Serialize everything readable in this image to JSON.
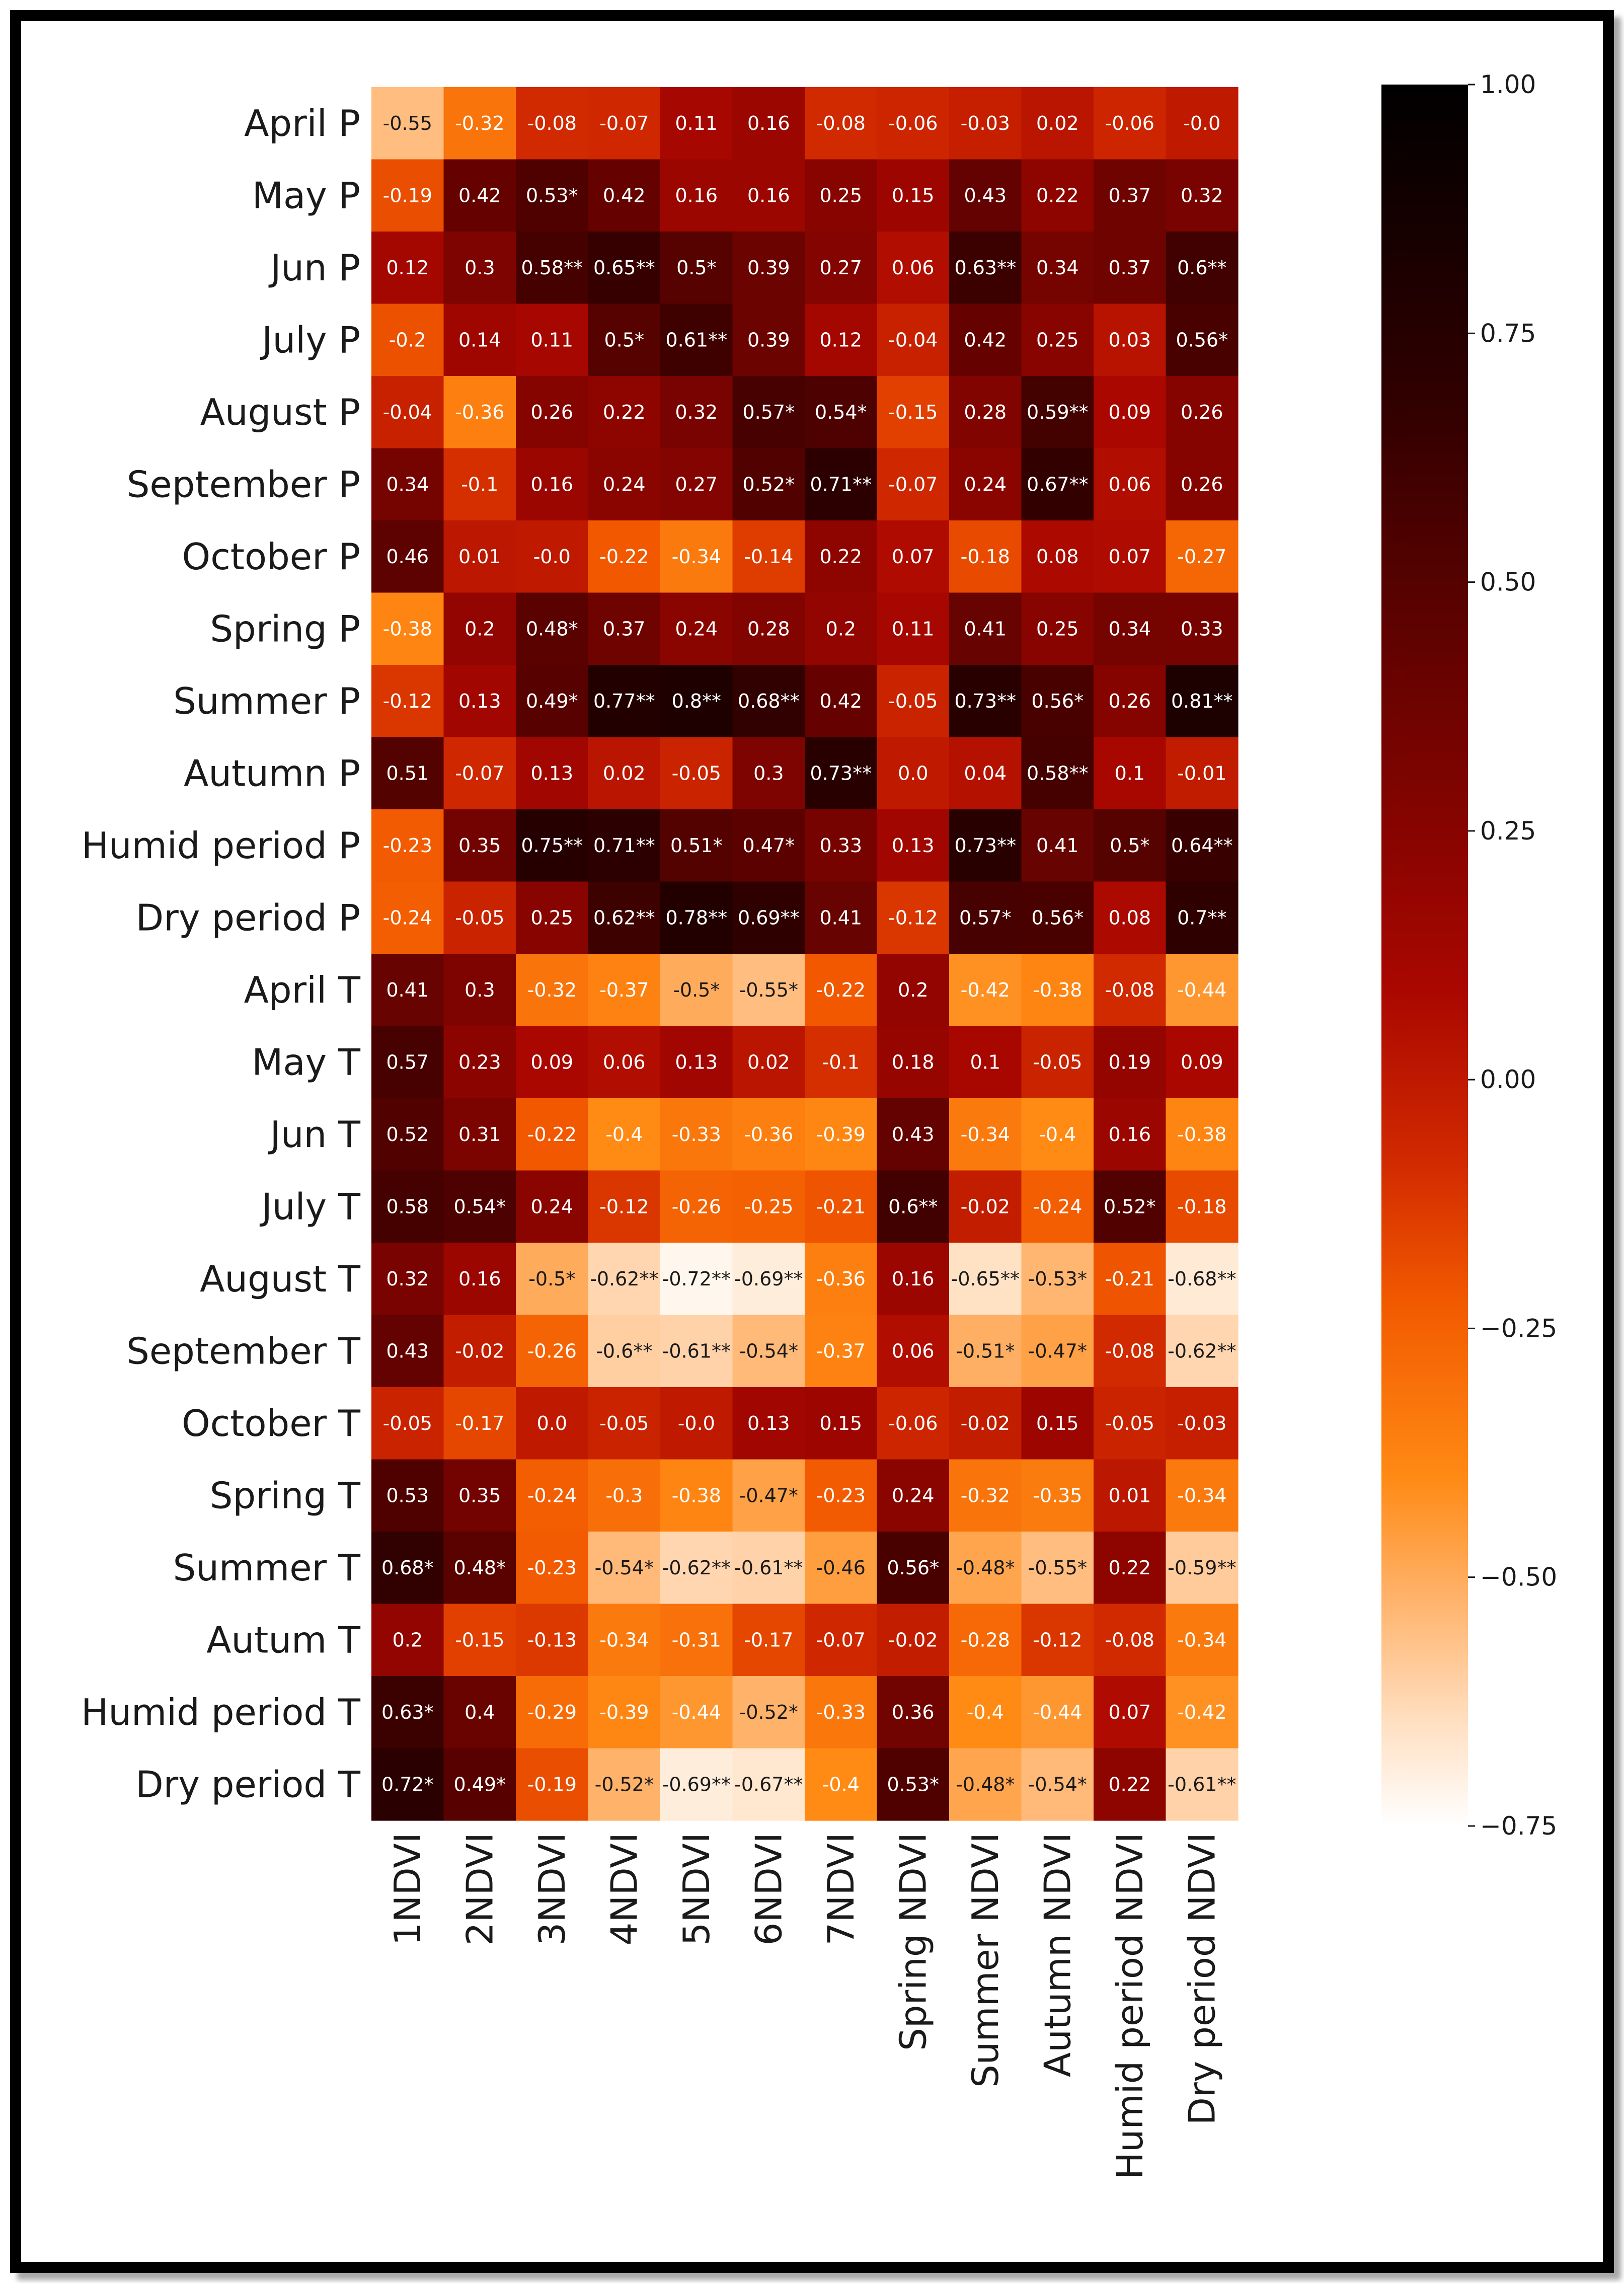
{
  "chart_data": {
    "type": "heatmap",
    "title": "",
    "xlabel": "",
    "ylabel": "",
    "colormap": "gist_heat_r",
    "vmin": -0.75,
    "vmax": 1.0,
    "colorbar": {
      "ticks": [
        1.0,
        0.75,
        0.5,
        0.25,
        0.0,
        -0.25,
        -0.5,
        -0.75
      ],
      "tick_labels": [
        "1.00",
        "0.75",
        "0.50",
        "0.25",
        "0.00",
        "−0.25",
        "−0.50",
        "−0.75"
      ]
    },
    "x_labels": [
      "1NDVI",
      "2NDVI",
      "3NDVI",
      "4NDVI",
      "5NDVI",
      "6NDVI",
      "7NDVI",
      "Spring NDVI",
      "Summer NDVI",
      "Autumn NDVI",
      "Humid  period NDVI",
      "Dry period NDVI"
    ],
    "y_labels": [
      "April P",
      "May P",
      "Jun P",
      "July P",
      "August P",
      "September P",
      "October P",
      "Spring P",
      "Summer P",
      "Autumn P",
      "Humid  period P",
      "Dry period P",
      "April T",
      "May T",
      "Jun T",
      "July T",
      "August T",
      "September T",
      "October T",
      "Spring T",
      "Summer T",
      "Autum T",
      "Humid  period T",
      "Dry period T"
    ],
    "values": [
      [
        -0.55,
        -0.32,
        -0.08,
        -0.07,
        0.11,
        0.16,
        -0.08,
        -0.06,
        -0.03,
        0.02,
        -0.06,
        -0.0
      ],
      [
        -0.19,
        0.42,
        0.53,
        0.42,
        0.16,
        0.16,
        0.25,
        0.15,
        0.43,
        0.22,
        0.37,
        0.32
      ],
      [
        0.12,
        0.3,
        0.58,
        0.65,
        0.5,
        0.39,
        0.27,
        0.06,
        0.63,
        0.34,
        0.37,
        0.6
      ],
      [
        -0.2,
        0.14,
        0.11,
        0.5,
        0.61,
        0.39,
        0.12,
        -0.04,
        0.42,
        0.25,
        0.03,
        0.56
      ],
      [
        -0.04,
        -0.36,
        0.26,
        0.22,
        0.32,
        0.57,
        0.54,
        -0.15,
        0.28,
        0.59,
        0.09,
        0.26
      ],
      [
        0.34,
        -0.1,
        0.16,
        0.24,
        0.27,
        0.52,
        0.71,
        -0.07,
        0.24,
        0.67,
        0.06,
        0.26
      ],
      [
        0.46,
        0.01,
        -0.0,
        -0.22,
        -0.34,
        -0.14,
        0.22,
        0.07,
        -0.18,
        0.08,
        0.07,
        -0.27
      ],
      [
        -0.38,
        0.2,
        0.48,
        0.37,
        0.24,
        0.28,
        0.2,
        0.11,
        0.41,
        0.25,
        0.34,
        0.33
      ],
      [
        -0.12,
        0.13,
        0.49,
        0.77,
        0.8,
        0.68,
        0.42,
        -0.05,
        0.73,
        0.56,
        0.26,
        0.81
      ],
      [
        0.51,
        -0.07,
        0.13,
        0.02,
        -0.05,
        0.3,
        0.73,
        0.0,
        0.04,
        0.58,
        0.1,
        -0.01
      ],
      [
        -0.23,
        0.35,
        0.75,
        0.71,
        0.51,
        0.47,
        0.33,
        0.13,
        0.73,
        0.41,
        0.5,
        0.64
      ],
      [
        -0.24,
        -0.05,
        0.25,
        0.62,
        0.78,
        0.69,
        0.41,
        -0.12,
        0.57,
        0.56,
        0.08,
        0.7
      ],
      [
        0.41,
        0.3,
        -0.32,
        -0.37,
        -0.5,
        -0.55,
        -0.22,
        0.2,
        -0.42,
        -0.38,
        -0.08,
        -0.44
      ],
      [
        0.57,
        0.23,
        0.09,
        0.06,
        0.13,
        0.02,
        -0.1,
        0.18,
        0.1,
        -0.05,
        0.19,
        0.09
      ],
      [
        0.52,
        0.31,
        -0.22,
        -0.4,
        -0.33,
        -0.36,
        -0.39,
        0.43,
        -0.34,
        -0.4,
        0.16,
        -0.38
      ],
      [
        0.58,
        0.54,
        0.24,
        -0.12,
        -0.26,
        -0.25,
        -0.21,
        0.6,
        -0.02,
        -0.24,
        0.52,
        -0.18
      ],
      [
        0.32,
        0.16,
        -0.5,
        -0.62,
        -0.72,
        -0.69,
        -0.36,
        0.16,
        -0.65,
        -0.53,
        -0.21,
        -0.68
      ],
      [
        0.43,
        -0.02,
        -0.26,
        -0.6,
        -0.61,
        -0.54,
        -0.37,
        0.06,
        -0.51,
        -0.47,
        -0.08,
        -0.62
      ],
      [
        -0.05,
        -0.17,
        0.0,
        -0.05,
        -0.0,
        0.13,
        0.15,
        -0.06,
        -0.02,
        0.15,
        -0.05,
        -0.03
      ],
      [
        0.53,
        0.35,
        -0.24,
        -0.3,
        -0.38,
        -0.47,
        -0.23,
        0.24,
        -0.32,
        -0.35,
        0.01,
        -0.34
      ],
      [
        0.68,
        0.48,
        -0.23,
        -0.54,
        -0.62,
        -0.61,
        -0.46,
        0.56,
        -0.48,
        -0.55,
        0.22,
        -0.59
      ],
      [
        0.2,
        -0.15,
        -0.13,
        -0.34,
        -0.31,
        -0.17,
        -0.07,
        -0.02,
        -0.28,
        -0.12,
        -0.08,
        -0.34
      ],
      [
        0.63,
        0.4,
        -0.29,
        -0.39,
        -0.44,
        -0.52,
        -0.33,
        0.36,
        -0.4,
        -0.44,
        0.07,
        -0.42
      ],
      [
        0.72,
        0.49,
        -0.19,
        -0.52,
        -0.69,
        -0.67,
        -0.4,
        0.53,
        -0.48,
        -0.54,
        0.22,
        -0.61
      ]
    ],
    "cell_labels": [
      [
        "-0.55",
        "-0.32",
        "-0.08",
        "-0.07",
        "0.11",
        "0.16",
        "-0.08",
        "-0.06",
        "-0.03",
        "0.02",
        "-0.06",
        "-0.0"
      ],
      [
        "-0.19",
        "0.42",
        "0.53*",
        "0.42",
        "0.16",
        "0.16",
        "0.25",
        "0.15",
        "0.43",
        "0.22",
        "0.37",
        "0.32"
      ],
      [
        "0.12",
        "0.3",
        "0.58**",
        "0.65**",
        "0.5*",
        "0.39",
        "0.27",
        "0.06",
        "0.63**",
        "0.34",
        "0.37",
        "0.6**"
      ],
      [
        "-0.2",
        "0.14",
        "0.11",
        "0.5*",
        "0.61**",
        "0.39",
        "0.12",
        "-0.04",
        "0.42",
        "0.25",
        "0.03",
        "0.56*"
      ],
      [
        "-0.04",
        "-0.36",
        "0.26",
        "0.22",
        "0.32",
        "0.57*",
        "0.54*",
        "-0.15",
        "0.28",
        "0.59**",
        "0.09",
        "0.26"
      ],
      [
        "0.34",
        "-0.1",
        "0.16",
        "0.24",
        "0.27",
        "0.52*",
        "0.71**",
        "-0.07",
        "0.24",
        "0.67**",
        "0.06",
        "0.26"
      ],
      [
        "0.46",
        "0.01",
        "-0.0",
        "-0.22",
        "-0.34",
        "-0.14",
        "0.22",
        "0.07",
        "-0.18",
        "0.08",
        "0.07",
        "-0.27"
      ],
      [
        "-0.38",
        "0.2",
        "0.48*",
        "0.37",
        "0.24",
        "0.28",
        "0.2",
        "0.11",
        "0.41",
        "0.25",
        "0.34",
        "0.33"
      ],
      [
        "-0.12",
        "0.13",
        "0.49*",
        "0.77**",
        "0.8**",
        "0.68**",
        "0.42",
        "-0.05",
        "0.73**",
        "0.56*",
        "0.26",
        "0.81**"
      ],
      [
        "0.51",
        "-0.07",
        "0.13",
        "0.02",
        "-0.05",
        "0.3",
        "0.73**",
        "0.0",
        "0.04",
        "0.58**",
        "0.1",
        "-0.01"
      ],
      [
        "-0.23",
        "0.35",
        "0.75**",
        "0.71**",
        "0.51*",
        "0.47*",
        "0.33",
        "0.13",
        "0.73**",
        "0.41",
        "0.5*",
        "0.64**"
      ],
      [
        "-0.24",
        "-0.05",
        "0.25",
        "0.62**",
        "0.78**",
        "0.69**",
        "0.41",
        "-0.12",
        "0.57*",
        "0.56*",
        "0.08",
        "0.7**"
      ],
      [
        "0.41",
        "0.3",
        "-0.32",
        "-0.37",
        "-0.5*",
        "-0.55*",
        "-0.22",
        "0.2",
        "-0.42",
        "-0.38",
        "-0.08",
        "-0.44"
      ],
      [
        "0.57",
        "0.23",
        "0.09",
        "0.06",
        "0.13",
        "0.02",
        "-0.1",
        "0.18",
        "0.1",
        "-0.05",
        "0.19",
        "0.09"
      ],
      [
        "0.52",
        "0.31",
        "-0.22",
        "-0.4",
        "-0.33",
        "-0.36",
        "-0.39",
        "0.43",
        "-0.34",
        "-0.4",
        "0.16",
        "-0.38"
      ],
      [
        "0.58",
        "0.54*",
        "0.24",
        "-0.12",
        "-0.26",
        "-0.25",
        "-0.21",
        "0.6**",
        "-0.02",
        "-0.24",
        "0.52*",
        "-0.18"
      ],
      [
        "0.32",
        "0.16",
        "-0.5*",
        "-0.62**",
        "-0.72**",
        "-0.69**",
        "-0.36",
        "0.16",
        "-0.65**",
        "-0.53*",
        "-0.21",
        "-0.68**"
      ],
      [
        "0.43",
        "-0.02",
        "-0.26",
        "-0.6**",
        "-0.61**",
        "-0.54*",
        "-0.37",
        "0.06",
        "-0.51*",
        "-0.47*",
        "-0.08",
        "-0.62**"
      ],
      [
        "-0.05",
        "-0.17",
        "0.0",
        "-0.05",
        "-0.0",
        "0.13",
        "0.15",
        "-0.06",
        "-0.02",
        "0.15",
        "-0.05",
        "-0.03"
      ],
      [
        "0.53",
        "0.35",
        "-0.24",
        "-0.3",
        "-0.38",
        "-0.47*",
        "-0.23",
        "0.24",
        "-0.32",
        "-0.35",
        "0.01",
        "-0.34"
      ],
      [
        "0.68*",
        "0.48*",
        "-0.23",
        "-0.54*",
        "-0.62**",
        "-0.61**",
        "-0.46",
        "0.56*",
        "-0.48*",
        "-0.55*",
        "0.22",
        "-0.59**"
      ],
      [
        "0.2",
        "-0.15",
        "-0.13",
        "-0.34",
        "-0.31",
        "-0.17",
        "-0.07",
        "-0.02",
        "-0.28",
        "-0.12",
        "-0.08",
        "-0.34"
      ],
      [
        "0.63*",
        "0.4",
        "-0.29",
        "-0.39",
        "-0.44",
        "-0.52*",
        "-0.33",
        "0.36",
        "-0.4",
        "-0.44",
        "0.07",
        "-0.42"
      ],
      [
        "0.72*",
        "0.49*",
        "-0.19",
        "-0.52*",
        "-0.69**",
        "-0.67**",
        "-0.4",
        "0.53*",
        "-0.48*",
        "-0.54*",
        "0.22",
        "-0.61**"
      ]
    ]
  }
}
